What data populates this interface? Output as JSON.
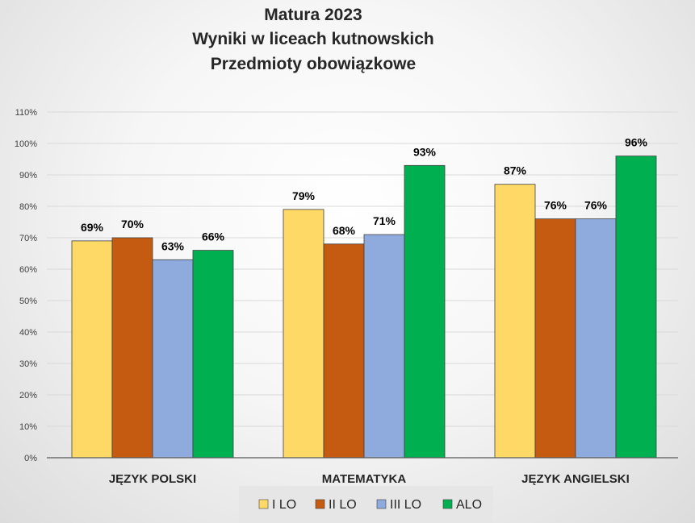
{
  "chart_data": {
    "type": "bar",
    "title": [
      "Matura 2023",
      "Wyniki w liceach kutnowskich",
      "Przedmioty obowiązkowe"
    ],
    "categories": [
      "JĘZYK POLSKI",
      "MATEMATYKA",
      "JĘZYK ANGIELSKI"
    ],
    "series": [
      {
        "name": "I LO",
        "values": [
          69,
          79,
          87
        ],
        "color": "#FFD966"
      },
      {
        "name": "II LO",
        "values": [
          70,
          68,
          76
        ],
        "color": "#C55A11"
      },
      {
        "name": "III LO",
        "values": [
          63,
          71,
          76
        ],
        "color": "#8FAADC"
      },
      {
        "name": "ALO",
        "values": [
          66,
          93,
          96
        ],
        "color": "#00B050"
      }
    ],
    "ylim": [
      0,
      110
    ],
    "yticks": [
      "0%",
      "10%",
      "20%",
      "30%",
      "40%",
      "50%",
      "60%",
      "70%",
      "80%",
      "90%",
      "100%",
      "110%"
    ],
    "value_suffix": "%",
    "grid": true,
    "legend_position": "bottom",
    "xlabel": "",
    "ylabel": ""
  }
}
